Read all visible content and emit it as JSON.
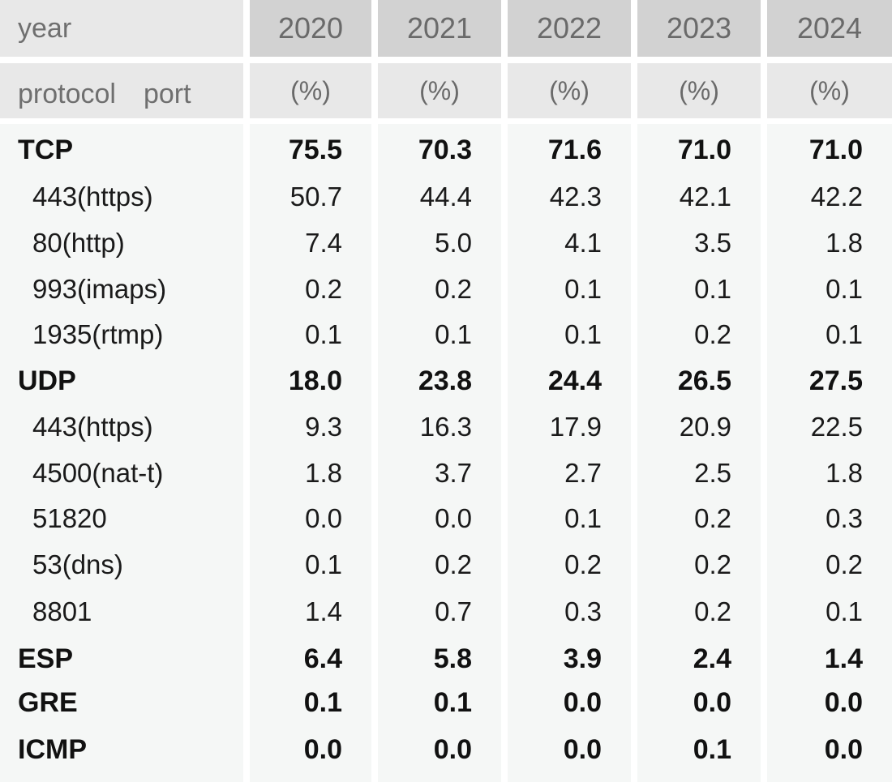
{
  "chart_data": {
    "type": "table",
    "header": {
      "year_label": "year",
      "sub_label": "protocol　port",
      "unit_label": "(%)"
    },
    "years": [
      "2020",
      "2021",
      "2022",
      "2023",
      "2024"
    ],
    "rows": [
      {
        "label": "TCP",
        "bold": true,
        "values": [
          "75.5",
          "70.3",
          "71.6",
          "71.0",
          "71.0"
        ]
      },
      {
        "label": "443(https)",
        "bold": false,
        "values": [
          "50.7",
          "44.4",
          "42.3",
          "42.1",
          "42.2"
        ]
      },
      {
        "label": "80(http)",
        "bold": false,
        "values": [
          "7.4",
          "5.0",
          "4.1",
          "3.5",
          "1.8"
        ]
      },
      {
        "label": "993(imaps)",
        "bold": false,
        "values": [
          "0.2",
          "0.2",
          "0.1",
          "0.1",
          "0.1"
        ]
      },
      {
        "label": "1935(rtmp)",
        "bold": false,
        "values": [
          "0.1",
          "0.1",
          "0.1",
          "0.2",
          "0.1"
        ]
      },
      {
        "label": "UDP",
        "bold": true,
        "values": [
          "18.0",
          "23.8",
          "24.4",
          "26.5",
          "27.5"
        ]
      },
      {
        "label": "443(https)",
        "bold": false,
        "values": [
          "9.3",
          "16.3",
          "17.9",
          "20.9",
          "22.5"
        ]
      },
      {
        "label": "4500(nat-t)",
        "bold": false,
        "values": [
          "1.8",
          "3.7",
          "2.7",
          "2.5",
          "1.8"
        ]
      },
      {
        "label": "51820",
        "bold": false,
        "values": [
          "0.0",
          "0.0",
          "0.1",
          "0.2",
          "0.3"
        ]
      },
      {
        "label": "53(dns)",
        "bold": false,
        "values": [
          "0.1",
          "0.2",
          "0.2",
          "0.2",
          "0.2"
        ]
      },
      {
        "label": "8801",
        "bold": false,
        "values": [
          "1.4",
          "0.7",
          "0.3",
          "0.2",
          "0.1"
        ]
      },
      {
        "label": "ESP",
        "bold": true,
        "values": [
          "6.4",
          "5.8",
          "3.9",
          "2.4",
          "1.4"
        ]
      },
      {
        "label": "GRE",
        "bold": true,
        "values": [
          "0.1",
          "0.1",
          "0.0",
          "0.0",
          "0.0"
        ]
      },
      {
        "label": "ICMP",
        "bold": true,
        "values": [
          "0.0",
          "0.0",
          "0.0",
          "0.1",
          "0.0"
        ]
      }
    ]
  }
}
